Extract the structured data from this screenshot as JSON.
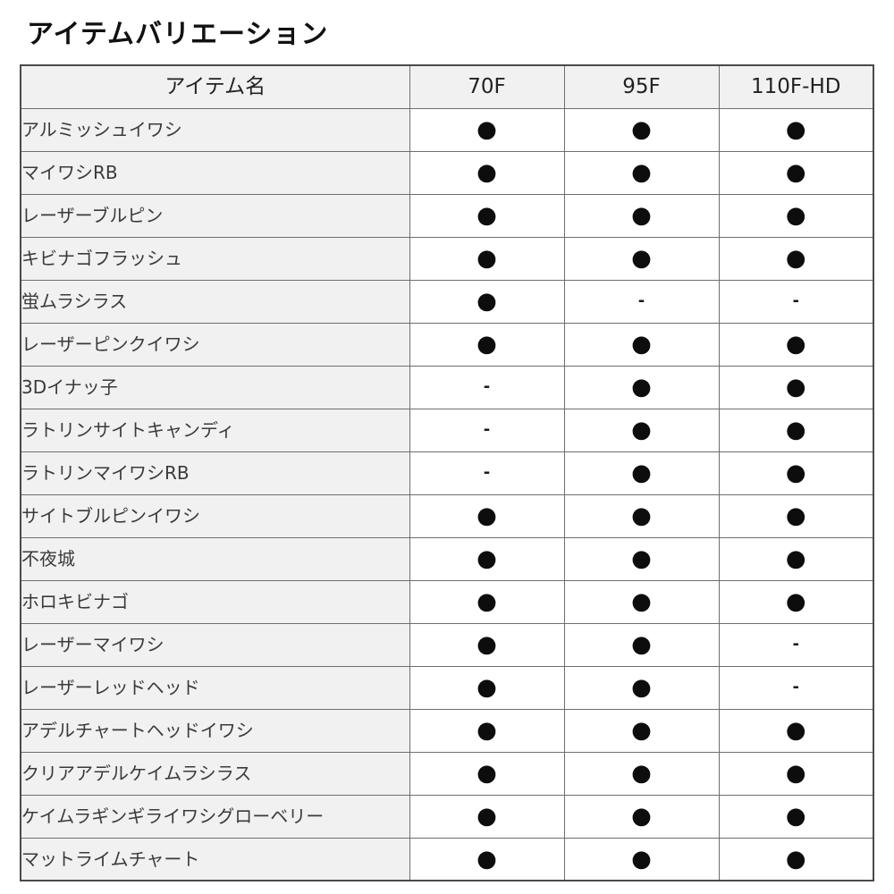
{
  "title": "アイテムバリエーション",
  "table": {
    "headers": [
      "アイテム名",
      "70F",
      "95F",
      "110F-HD"
    ],
    "marker_available": "●",
    "marker_unavailable": "-",
    "rows": [
      {
        "name": "アルミッシュイワシ",
        "values": [
          "●",
          "●",
          "●"
        ]
      },
      {
        "name": "マイワシRB",
        "values": [
          "●",
          "●",
          "●"
        ]
      },
      {
        "name": "レーザーブルピン",
        "values": [
          "●",
          "●",
          "●"
        ]
      },
      {
        "name": "キビナゴフラッシュ",
        "values": [
          "●",
          "●",
          "●"
        ]
      },
      {
        "name": "蛍ムラシラス",
        "values": [
          "●",
          "-",
          "-"
        ]
      },
      {
        "name": "レーザーピンクイワシ",
        "values": [
          "●",
          "●",
          "●"
        ]
      },
      {
        "name": "3Dイナッ子",
        "values": [
          "-",
          "●",
          "●"
        ]
      },
      {
        "name": "ラトリンサイトキャンディ",
        "values": [
          "-",
          "●",
          "●"
        ]
      },
      {
        "name": "ラトリンマイワシRB",
        "values": [
          "-",
          "●",
          "●"
        ]
      },
      {
        "name": "サイトブルピンイワシ",
        "values": [
          "●",
          "●",
          "●"
        ]
      },
      {
        "name": "不夜城",
        "values": [
          "●",
          "●",
          "●"
        ]
      },
      {
        "name": "ホロキビナゴ",
        "values": [
          "●",
          "●",
          "●"
        ]
      },
      {
        "name": "レーザーマイワシ",
        "values": [
          "●",
          "●",
          "-"
        ]
      },
      {
        "name": "レーザーレッドヘッド",
        "values": [
          "●",
          "●",
          "-"
        ]
      },
      {
        "name": "アデルチャートヘッドイワシ",
        "values": [
          "●",
          "●",
          "●"
        ]
      },
      {
        "name": "クリアアデルケイムラシラス",
        "values": [
          "●",
          "●",
          "●"
        ]
      },
      {
        "name": "ケイムラギンギライワシグローベリー",
        "values": [
          "●",
          "●",
          "●"
        ]
      },
      {
        "name": "マットライムチャート",
        "values": [
          "●",
          "●",
          "●"
        ]
      }
    ]
  },
  "colors": {
    "header_bg": "#f1f1f1",
    "name_cell_bg": "#f1f1f1",
    "value_cell_bg": "#ffffff",
    "border": "#6e6e6e",
    "text": "#3a3a3a",
    "marker": "#0d0d0d"
  }
}
